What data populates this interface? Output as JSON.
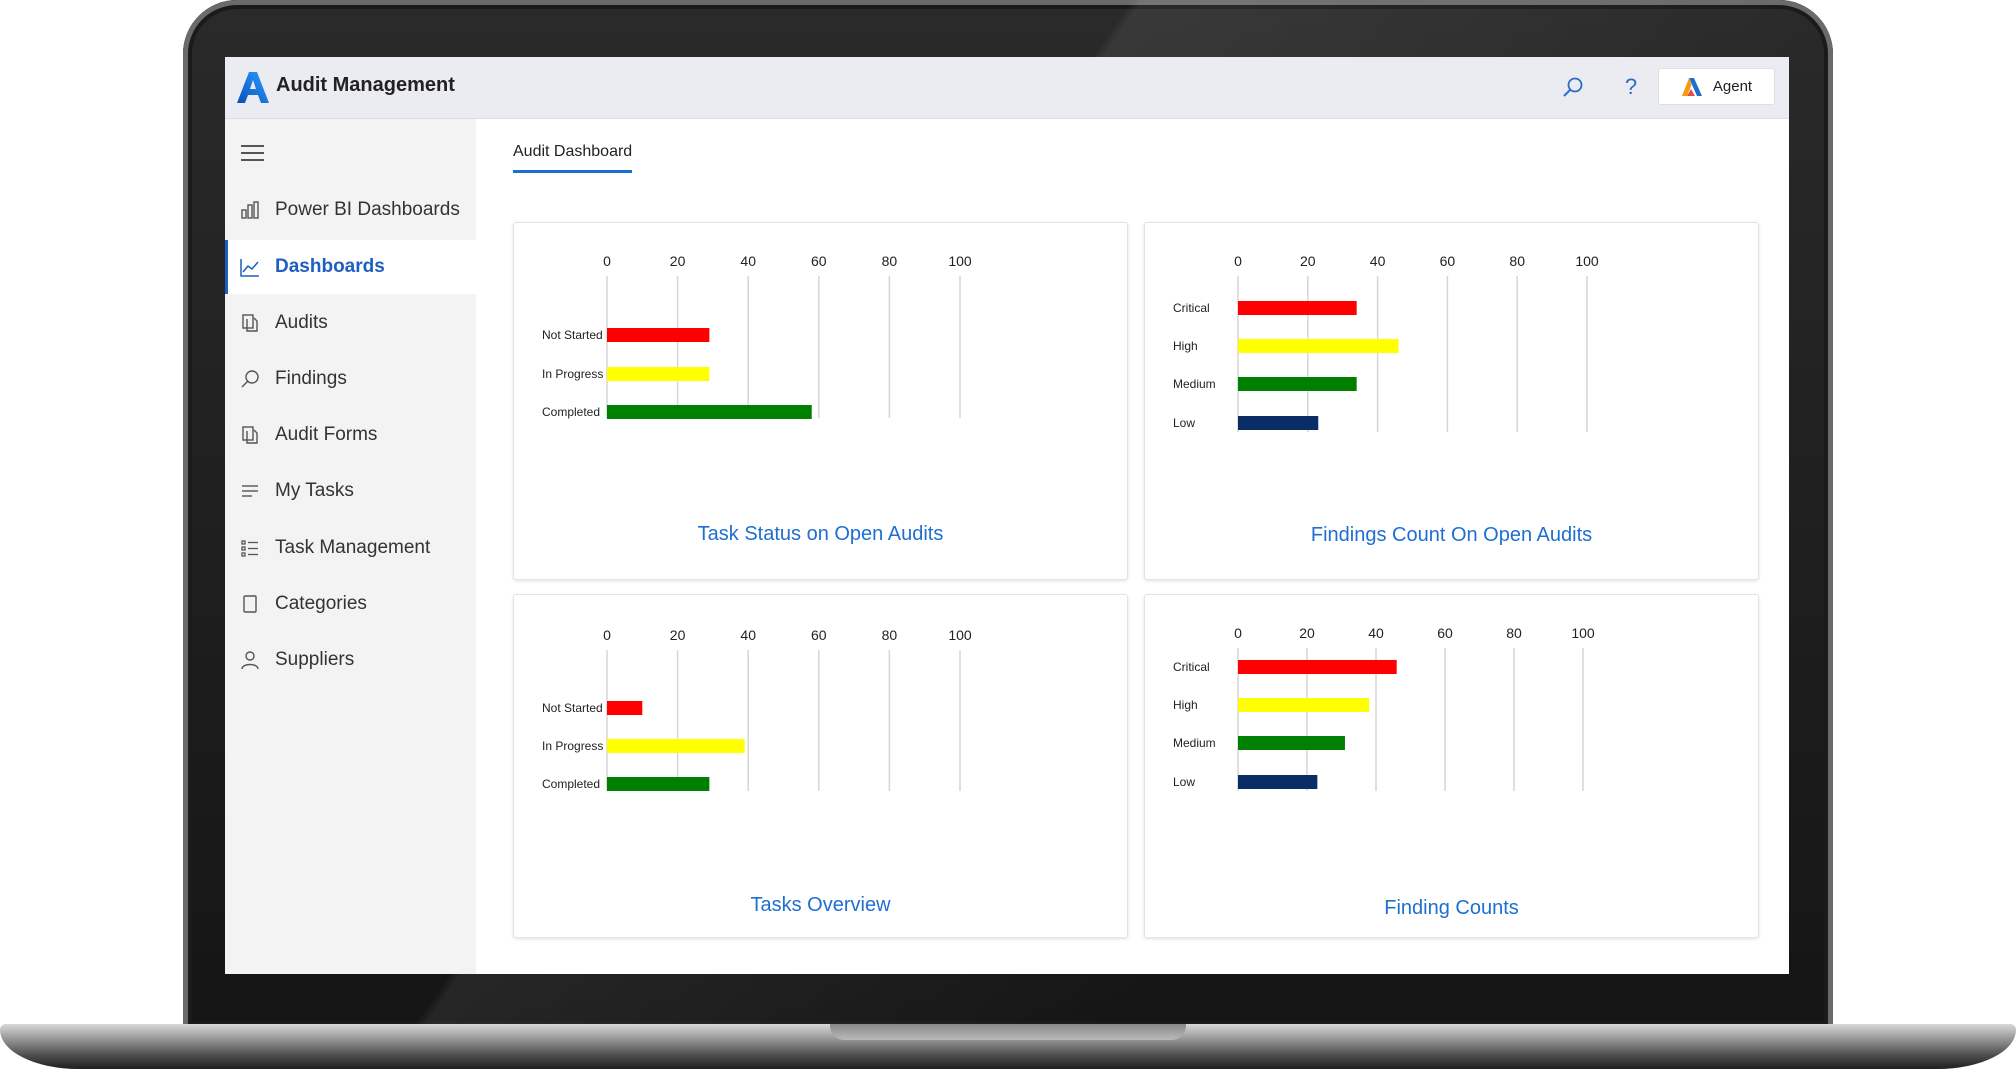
{
  "app": {
    "title": "Audit Management",
    "agent_label": "Agent",
    "search_icon": "search-icon",
    "help_icon": "help-icon",
    "help_glyph": "?"
  },
  "sidebar": {
    "items": [
      {
        "label": "Power BI Dashboards",
        "icon": "bar-chart-icon",
        "active": false
      },
      {
        "label": "Dashboards",
        "icon": "line-chart-icon",
        "active": true
      },
      {
        "label": "Audits",
        "icon": "documents-icon",
        "active": false
      },
      {
        "label": "Findings",
        "icon": "search-icon",
        "active": false
      },
      {
        "label": "Audit Forms",
        "icon": "documents-icon",
        "active": false
      },
      {
        "label": "My Tasks",
        "icon": "lines-icon",
        "active": false
      },
      {
        "label": "Task Management",
        "icon": "checklist-icon",
        "active": false
      },
      {
        "label": "Categories",
        "icon": "page-icon",
        "active": false
      },
      {
        "label": "Suppliers",
        "icon": "person-icon",
        "active": false
      }
    ]
  },
  "main": {
    "tab_label": "Audit Dashboard"
  },
  "colors": {
    "accent": "#1e6fd0",
    "red": "#ff0000",
    "yellow": "#ffff00",
    "green": "#008000",
    "navy": "#0b2d66"
  },
  "chart_data": [
    {
      "type": "bar",
      "title": "Task Status on Open Audits",
      "categories": [
        "Not Started",
        "In Progress",
        "Completed"
      ],
      "values": [
        29,
        29,
        58
      ],
      "colors": [
        "#ff0000",
        "#ffff00",
        "#008000"
      ],
      "xlim": [
        0,
        100
      ],
      "ticks": [
        0,
        20,
        40,
        60,
        80,
        100
      ],
      "grid": true
    },
    {
      "type": "bar",
      "title": "Findings Count On Open Audits",
      "categories": [
        "Critical",
        "High",
        "Medium",
        "Low"
      ],
      "values": [
        34,
        46,
        34,
        23
      ],
      "colors": [
        "#ff0000",
        "#ffff00",
        "#008000",
        "#0b2d66"
      ],
      "xlim": [
        0,
        100
      ],
      "ticks": [
        0,
        20,
        40,
        60,
        80,
        100
      ],
      "grid": true
    },
    {
      "type": "bar",
      "title": "Tasks Overview",
      "categories": [
        "Not Started",
        "In Progress",
        "Completed"
      ],
      "values": [
        10,
        39,
        29
      ],
      "colors": [
        "#ff0000",
        "#ffff00",
        "#008000"
      ],
      "xlim": [
        0,
        100
      ],
      "ticks": [
        0,
        20,
        40,
        60,
        80,
        100
      ],
      "grid": true
    },
    {
      "type": "bar",
      "title": "Finding Counts",
      "categories": [
        "Critical",
        "High",
        "Medium",
        "Low"
      ],
      "values": [
        46,
        38,
        31,
        23
      ],
      "colors": [
        "#ff0000",
        "#ffff00",
        "#008000",
        "#0b2d66"
      ],
      "xlim": [
        0,
        100
      ],
      "ticks": [
        0,
        20,
        40,
        60,
        80,
        100
      ],
      "grid": true
    }
  ]
}
